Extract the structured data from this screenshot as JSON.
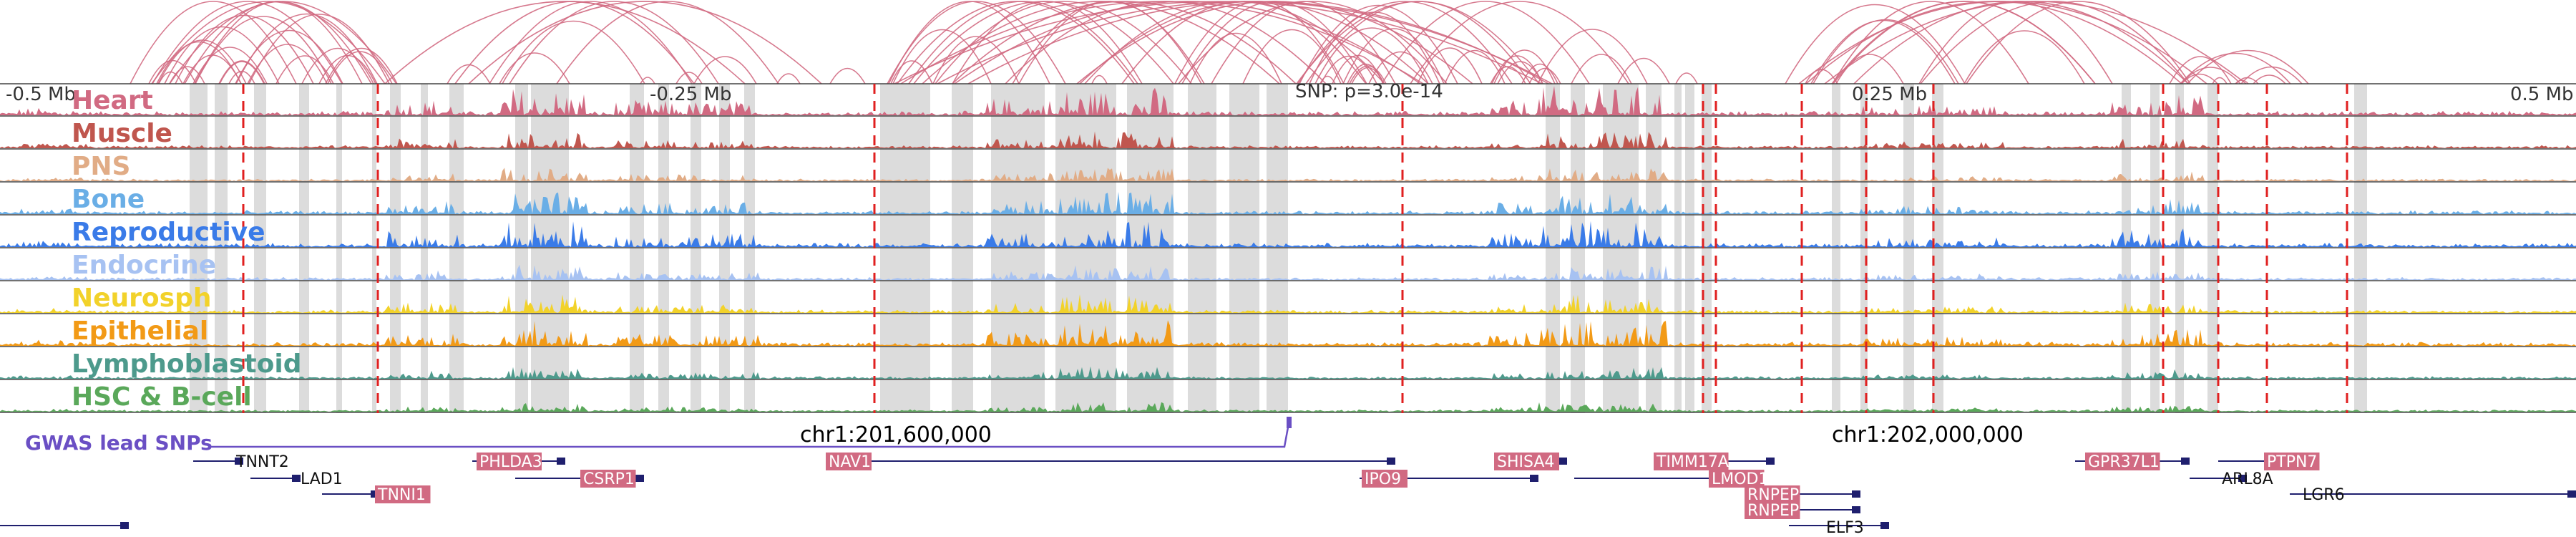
{
  "axis": {
    "region_labels": [
      "-0.5 Mb",
      "-0.25 Mb",
      "0.25 Mb",
      "0.5 Mb"
    ],
    "snp_label": "SNP: p=3.0e-14"
  },
  "tracks": [
    {
      "name": "Heart",
      "color": "#d16a82"
    },
    {
      "name": "Muscle",
      "color": "#c0564e"
    },
    {
      "name": "PNS",
      "color": "#e1ac86"
    },
    {
      "name": "Bone",
      "color": "#6aaee6"
    },
    {
      "name": "Reproductive",
      "color": "#3a7be8"
    },
    {
      "name": "Endocrine",
      "color": "#a7c2f2"
    },
    {
      "name": "Neurosph",
      "color": "#f2d22a"
    },
    {
      "name": "Epithelial",
      "color": "#f29a16"
    },
    {
      "name": "Lymphoblastoid",
      "color": "#4d9a8c"
    },
    {
      "name": "HSC & B-cell",
      "color": "#5aa85a"
    }
  ],
  "gwas": {
    "label": "GWAS lead SNPs",
    "color": "#6a4fc4"
  },
  "coordinates": [
    "chr1:201,600,000",
    "chr1:202,000,000"
  ],
  "genes": [
    {
      "name": "TNNT2",
      "highlight": false
    },
    {
      "name": "LAD1",
      "highlight": false
    },
    {
      "name": "TNNI1",
      "highlight": true
    },
    {
      "name": "PHLDA3",
      "highlight": true
    },
    {
      "name": "CSRP1",
      "highlight": true
    },
    {
      "name": "NAV1",
      "highlight": true
    },
    {
      "name": "IPO9",
      "highlight": true
    },
    {
      "name": "SHISA4",
      "highlight": true
    },
    {
      "name": "TIMM17A",
      "highlight": true
    },
    {
      "name": "LMOD1",
      "highlight": true
    },
    {
      "name": "RNPEP",
      "highlight": true
    },
    {
      "name": "RNPEP",
      "highlight": true
    },
    {
      "name": "ELF3",
      "highlight": false
    },
    {
      "name": "GPR37L1",
      "highlight": true
    },
    {
      "name": "ARL8A",
      "highlight": false
    },
    {
      "name": "PTPN7",
      "highlight": true
    },
    {
      "name": "LGR6",
      "highlight": false
    }
  ],
  "colors": {
    "arc": "#d16a82",
    "dashed_line": "#e02020",
    "highlight_band": "#dcdcdc",
    "gene_box": "#d16a82",
    "gene_strand": "#1f1f6e"
  }
}
